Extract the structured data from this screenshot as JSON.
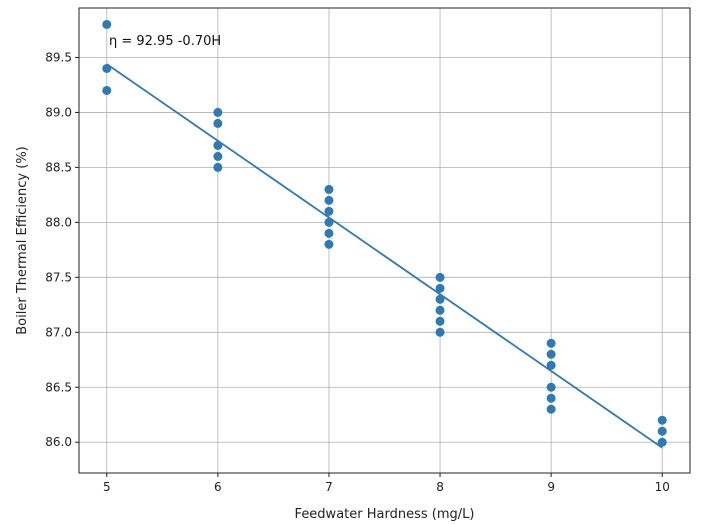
{
  "chart_data": {
    "type": "scatter",
    "xlabel": "Feedwater Hardness (mg/L)",
    "ylabel": "Boiler Thermal Efficiency (%)",
    "xlim": [
      4.75,
      10.25
    ],
    "ylim": [
      85.72,
      89.95
    ],
    "xticks": [
      5,
      6,
      7,
      8,
      9,
      10
    ],
    "yticks": [
      86.0,
      86.5,
      87.0,
      87.5,
      88.0,
      88.5,
      89.0,
      89.5
    ],
    "ytick_labels": [
      "86.0",
      "86.5",
      "87.0",
      "87.5",
      "88.0",
      "88.5",
      "89.0",
      "89.5"
    ],
    "grid": true,
    "series": [
      {
        "kind": "scatter",
        "color": "#2f79b5",
        "points": [
          {
            "x": 5,
            "y": 89.8
          },
          {
            "x": 5,
            "y": 89.4
          },
          {
            "x": 5,
            "y": 89.2
          },
          {
            "x": 6,
            "y": 89.0
          },
          {
            "x": 6,
            "y": 88.9
          },
          {
            "x": 6,
            "y": 88.7
          },
          {
            "x": 6,
            "y": 88.6
          },
          {
            "x": 6,
            "y": 88.5
          },
          {
            "x": 7,
            "y": 88.3
          },
          {
            "x": 7,
            "y": 88.2
          },
          {
            "x": 7,
            "y": 88.1
          },
          {
            "x": 7,
            "y": 88.0
          },
          {
            "x": 7,
            "y": 87.9
          },
          {
            "x": 7,
            "y": 87.8
          },
          {
            "x": 8,
            "y": 87.5
          },
          {
            "x": 8,
            "y": 87.4
          },
          {
            "x": 8,
            "y": 87.3
          },
          {
            "x": 8,
            "y": 87.2
          },
          {
            "x": 8,
            "y": 87.1
          },
          {
            "x": 8,
            "y": 87.0
          },
          {
            "x": 9,
            "y": 86.9
          },
          {
            "x": 9,
            "y": 86.8
          },
          {
            "x": 9,
            "y": 86.7
          },
          {
            "x": 9,
            "y": 86.5
          },
          {
            "x": 9,
            "y": 86.4
          },
          {
            "x": 9,
            "y": 86.3
          },
          {
            "x": 10,
            "y": 86.2
          },
          {
            "x": 10,
            "y": 86.1
          },
          {
            "x": 10,
            "y": 86.0
          }
        ]
      },
      {
        "kind": "line",
        "color": "#2f79b5",
        "points": [
          {
            "x": 5,
            "y": 89.44
          },
          {
            "x": 10,
            "y": 85.95
          }
        ]
      }
    ],
    "annotations": [
      {
        "text": "η = 92.95 -0.70H",
        "x": 5.02,
        "y": 89.65
      }
    ]
  }
}
